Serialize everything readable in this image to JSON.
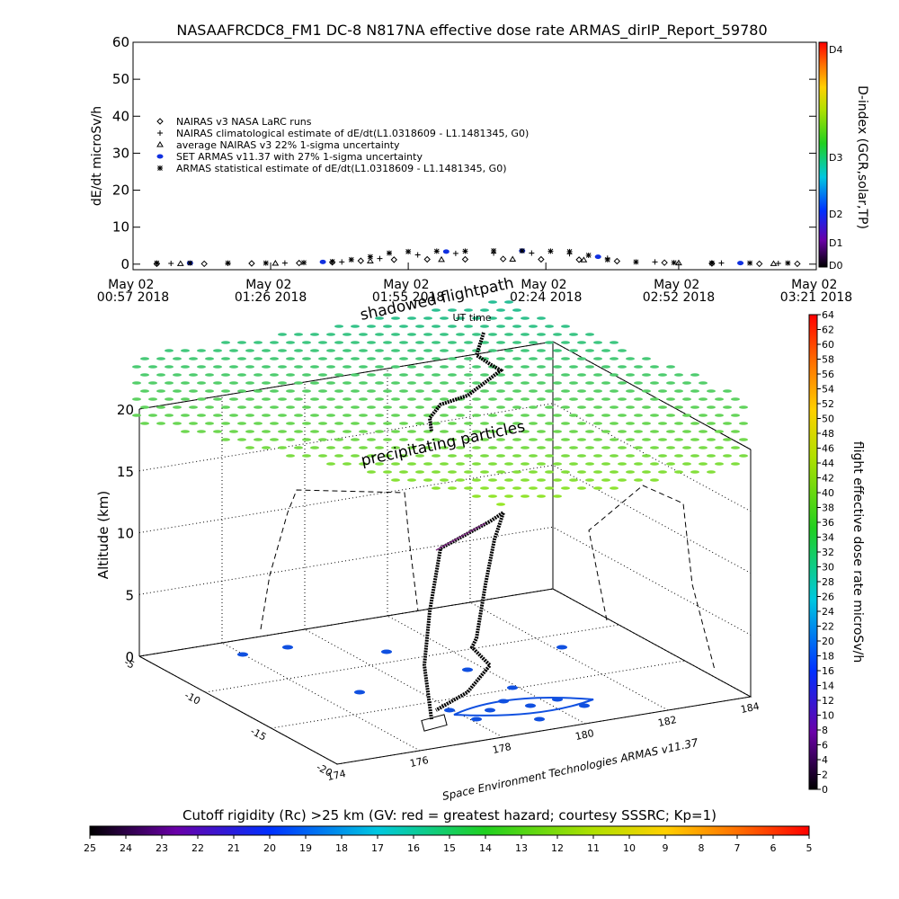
{
  "chart_data": [
    {
      "type": "line",
      "title": "NASAAFRCDC8_FM1 DC-8   N817NA effective dose rate ARMAS_dirIP_Report_59780",
      "y_label": "dE/dt microSv/h",
      "x_label": "UT time",
      "xlim": [
        0,
        144
      ],
      "xticks": [
        {
          "value": 0,
          "label": "May 02 00:57 2018"
        },
        {
          "value": 29,
          "label": "May 02 01:26 2018"
        },
        {
          "value": 58,
          "label": "May 02 01:55 2018"
        },
        {
          "value": 87,
          "label": "May 02 02:24 2018"
        },
        {
          "value": 115,
          "label": "May 02 02:52 2018"
        },
        {
          "value": 144,
          "label": "May 02 03:21 2018"
        }
      ],
      "ylim": [
        -1.5,
        60
      ],
      "yticks": [
        0,
        10,
        20,
        30,
        40,
        50,
        60
      ],
      "series": [
        {
          "name": "NAIRAS v3 NASA LaRC runs",
          "marker": "diamond",
          "color": "#000000",
          "x": [
            5,
            15,
            25,
            35,
            42,
            48,
            55,
            62,
            70,
            78,
            86,
            94,
            102,
            112,
            122,
            132,
            140
          ],
          "values": [
            0.1,
            0.1,
            0.2,
            0.3,
            0.5,
            0.9,
            1.2,
            1.3,
            1.3,
            1.4,
            1.3,
            1.2,
            0.8,
            0.4,
            0.2,
            0.1,
            0.1
          ]
        },
        {
          "name": "NAIRAS climatological estimate of dE/dt(L1.0318609 - L1.1481345, G0)",
          "marker": "plus",
          "color": "#000000",
          "x": [
            8,
            20,
            32,
            44,
            52,
            60,
            68,
            76,
            84,
            92,
            100,
            110,
            124,
            136
          ],
          "values": [
            0.2,
            0.2,
            0.3,
            0.6,
            1.5,
            2.5,
            2.9,
            3.0,
            3.0,
            2.8,
            1.6,
            0.6,
            0.3,
            0.2
          ]
        },
        {
          "name": "average NAIRAS v3 22% 1-sigma uncertainty",
          "marker": "triangle",
          "color": "#000000",
          "x": [
            10,
            30,
            50,
            65,
            80,
            95,
            115,
            135
          ],
          "values": [
            0.1,
            0.2,
            0.8,
            1.2,
            1.3,
            1.1,
            0.3,
            0.1
          ]
        },
        {
          "name": "SET ARMAS v11.37 with 27% 1-sigma uncertainty",
          "marker": "dot",
          "color": "#1030e0",
          "x": [
            12,
            40,
            66,
            82,
            98,
            128
          ],
          "values": [
            0.3,
            0.6,
            3.4,
            3.6,
            2.0,
            0.3
          ]
        },
        {
          "name": "ARMAS statistical estimate of dE/dt(L1.0318609 - L1.1481345, G0)",
          "marker": "asterisk",
          "color": "#000000",
          "x": [
            5,
            12,
            20,
            28,
            36,
            42,
            46,
            50,
            54,
            58,
            64,
            70,
            76,
            82,
            88,
            92,
            96,
            100,
            106,
            114,
            122,
            130,
            138
          ],
          "values": [
            0.3,
            0.3,
            0.3,
            0.3,
            0.4,
            0.7,
            1.2,
            2.0,
            3.0,
            3.4,
            3.5,
            3.5,
            3.6,
            3.6,
            3.5,
            3.4,
            2.4,
            1.2,
            0.6,
            0.4,
            0.3,
            0.3,
            0.3
          ]
        }
      ],
      "dindex": {
        "label": "D-index (GCR,solar,TP)",
        "ticks": [
          "D0",
          "D1",
          "D2",
          "D3",
          "D4"
        ]
      }
    },
    {
      "type": "scatter3d",
      "z_label": "Altitude (km)",
      "zlim": [
        0,
        20
      ],
      "zticks": [
        0,
        5,
        10,
        15,
        20
      ],
      "lat_ticks": [
        -5,
        -10,
        -15,
        -20
      ],
      "lon_ticks": [
        174,
        176,
        178,
        180,
        182,
        184
      ],
      "annotations": [
        "shadowed flightpath",
        "precipitating particles"
      ],
      "credit": "Space Environment Technologies ARMAS v11.37",
      "dose_colorbar": {
        "label": "flight effective dose rate microSv/h",
        "lim": [
          0,
          64
        ],
        "ticks": [
          0,
          2,
          4,
          6,
          8,
          10,
          12,
          14,
          16,
          18,
          20,
          22,
          24,
          26,
          28,
          30,
          32,
          34,
          36,
          38,
          40,
          42,
          44,
          46,
          48,
          50,
          52,
          54,
          56,
          58,
          60,
          62,
          64
        ]
      },
      "rc_colorbar": {
        "label": "Cutoff rigidity (Rc) >25 km (GV: red = greatest hazard; courtesy SSSRC; Kp=1)",
        "lim": [
          25,
          5
        ],
        "ticks": [
          25,
          24,
          23,
          22,
          21,
          20,
          19,
          18,
          17,
          16,
          15,
          14,
          13,
          12,
          11,
          10,
          9,
          8,
          7,
          6,
          5
        ]
      }
    }
  ]
}
